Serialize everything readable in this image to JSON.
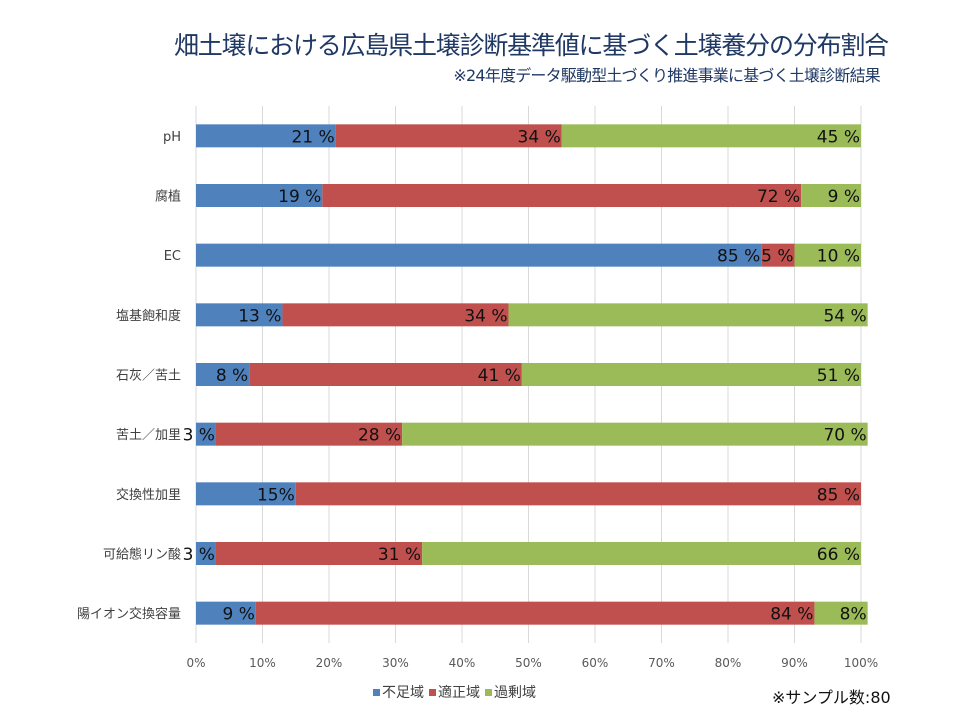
{
  "header": {
    "title": "畑土壌における広島県土壌診断基準値に基づく土壌養分の分布割合",
    "subtitle": "※24年度データ駆動型土づくり推進事業に基づく土壌診断結果"
  },
  "footer": {
    "sample_note": "※サンプル数:80"
  },
  "chart_data": {
    "type": "bar",
    "orientation": "horizontal",
    "stacked": "percent",
    "title": "畑土壌における広島県土壌診断基準値に基づく土壌養分の分布割合",
    "subtitle": "※24年度データ駆動型土づくり推進事業に基づく土壌診断結果",
    "xlabel": "",
    "ylabel": "",
    "xlim": [
      0,
      100
    ],
    "x_ticks": [
      "0%",
      "10%",
      "20%",
      "30%",
      "40%",
      "50%",
      "60%",
      "70%",
      "80%",
      "90%",
      "100%"
    ],
    "grid": true,
    "legend_position": "bottom",
    "categories": [
      "pH",
      "腐植",
      "EC",
      "塩基飽和度",
      "石灰／苦土",
      "苦土／加里",
      "交換性加里",
      "可給態リン酸",
      "陽イオン交換容量"
    ],
    "series": [
      {
        "name": "不足域",
        "color": "#4f81bd",
        "values": [
          21,
          19,
          85,
          13,
          8,
          3,
          15,
          3,
          9
        ],
        "labels": [
          "21 %",
          "19 %",
          "85 %",
          "13 %",
          "8 %",
          "3 %",
          "15%",
          "3 %",
          "9 %"
        ]
      },
      {
        "name": "適正域",
        "color": "#c0504d",
        "values": [
          34,
          72,
          5,
          34,
          41,
          28,
          85,
          31,
          84
        ],
        "labels": [
          "34 %",
          "72 %",
          "5 %",
          "34 %",
          "41 %",
          "28 %",
          "85 %",
          "31 %",
          "84 %"
        ]
      },
      {
        "name": "過剰域",
        "color": "#9bbb59",
        "values": [
          45,
          9,
          10,
          54,
          51,
          70,
          0,
          66,
          8
        ],
        "labels": [
          "45 %",
          "9 %",
          "10 %",
          "54 %",
          "51 %",
          "70 %",
          "",
          "66 %",
          "8%"
        ]
      }
    ],
    "annotations": [
      "※サンプル数:80"
    ]
  }
}
